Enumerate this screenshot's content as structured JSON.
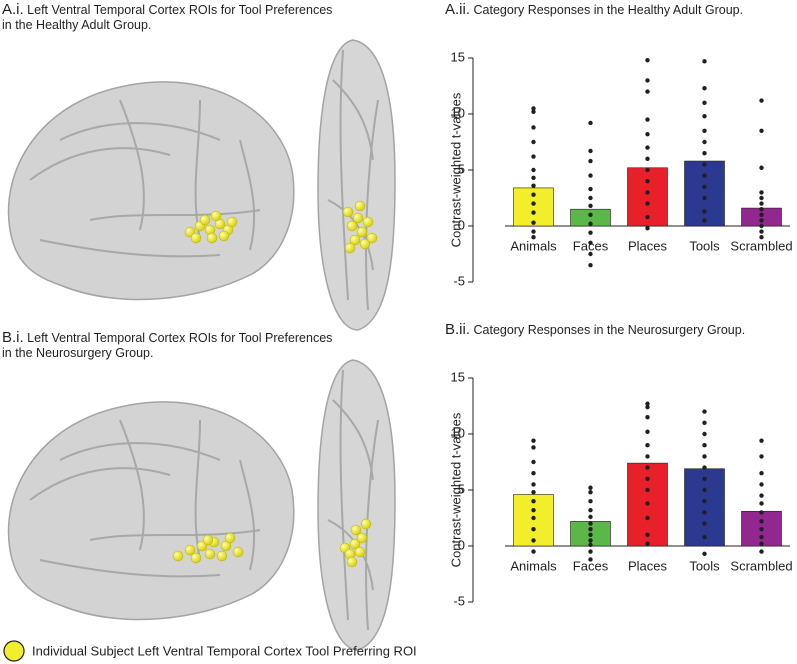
{
  "panels": [
    {
      "label": "A.i.",
      "title": "Left Ventral Temporal Cortex ROIs for Tool Preferences in the Healthy Adult Group."
    },
    {
      "label": "B.i.",
      "title": "Left Ventral Temporal Cortex ROIs for Tool Preferences in the Neurosurgery Group."
    }
  ],
  "legend_text": "Individual Subject Left Ventral Temporal Cortex Tool Preferring ROI",
  "chart_data": [
    {
      "type": "bar",
      "label": "A.ii.",
      "title": "Category Responses in the Healthy Adult Group.",
      "ylabel": "Contrast-weighted t-values",
      "categories": [
        "Animals",
        "Faces",
        "Places",
        "Tools",
        "Scrambled"
      ],
      "values": [
        3.4,
        1.5,
        5.2,
        5.8,
        1.6
      ],
      "colors": [
        "#f2ee2c",
        "#5bb848",
        "#e8202a",
        "#2b3990",
        "#92278f"
      ],
      "points": [
        [
          10.5,
          10.2,
          8.8,
          7.5,
          6.2,
          5.0,
          4.3,
          3.6,
          2.8,
          2.0,
          1.2,
          0.3,
          -0.5,
          -1.0
        ],
        [
          9.2,
          6.7,
          5.8,
          4.5,
          3.3,
          2.5,
          1.8,
          1.0,
          0.2,
          -0.6,
          -1.5,
          -2.5,
          -3.5
        ],
        [
          14.8,
          13.0,
          12.0,
          9.5,
          8.2,
          7.0,
          6.0,
          5.0,
          4.0,
          3.0,
          2.0,
          0.8,
          -0.2
        ],
        [
          14.7,
          12.3,
          11.0,
          9.8,
          8.5,
          7.5,
          6.5,
          5.5,
          4.5,
          3.5,
          2.5,
          1.3,
          0.5
        ],
        [
          11.2,
          8.5,
          5.2,
          3.0,
          2.5,
          2.0,
          1.5,
          1.0,
          0.5,
          0,
          -0.5,
          -1.0
        ]
      ],
      "ylim": [
        -5,
        15
      ],
      "yticks": [
        -5,
        0,
        5,
        10,
        15
      ]
    },
    {
      "type": "bar",
      "label": "B.ii.",
      "title": "Category Responses in the Neurosurgery Group.",
      "ylabel": "Contrast-weighted t-values",
      "categories": [
        "Animals",
        "Faces",
        "Places",
        "Tools",
        "Scrambled"
      ],
      "values": [
        4.6,
        2.2,
        7.4,
        6.9,
        3.1
      ],
      "colors": [
        "#f2ee2c",
        "#5bb848",
        "#e8202a",
        "#2b3990",
        "#92278f"
      ],
      "points": [
        [
          9.4,
          8.8,
          7.5,
          6.5,
          5.5,
          4.8,
          4.0,
          3.2,
          2.5,
          1.5,
          0.5,
          -0.5
        ],
        [
          5.2,
          4.8,
          4.0,
          3.2,
          2.6,
          2.0,
          1.5,
          1.0,
          0.5,
          0.1,
          -0.5,
          -1.2
        ],
        [
          12.7,
          12.4,
          11.5,
          10.2,
          9.0,
          8.0,
          7.0,
          6.0,
          5.0,
          3.8,
          2.5,
          1.0,
          0.2
        ],
        [
          12.0,
          11.0,
          10.0,
          9.0,
          8.0,
          7.0,
          6.0,
          5.0,
          4.0,
          3.0,
          2.0,
          0.8,
          -0.7
        ],
        [
          9.4,
          8.0,
          6.5,
          5.5,
          4.5,
          3.8,
          3.0,
          2.2,
          1.5,
          0.8,
          0.2,
          -0.5
        ]
      ],
      "ylim": [
        -5,
        15
      ],
      "yticks": [
        -5,
        0,
        5,
        10,
        15
      ]
    }
  ]
}
